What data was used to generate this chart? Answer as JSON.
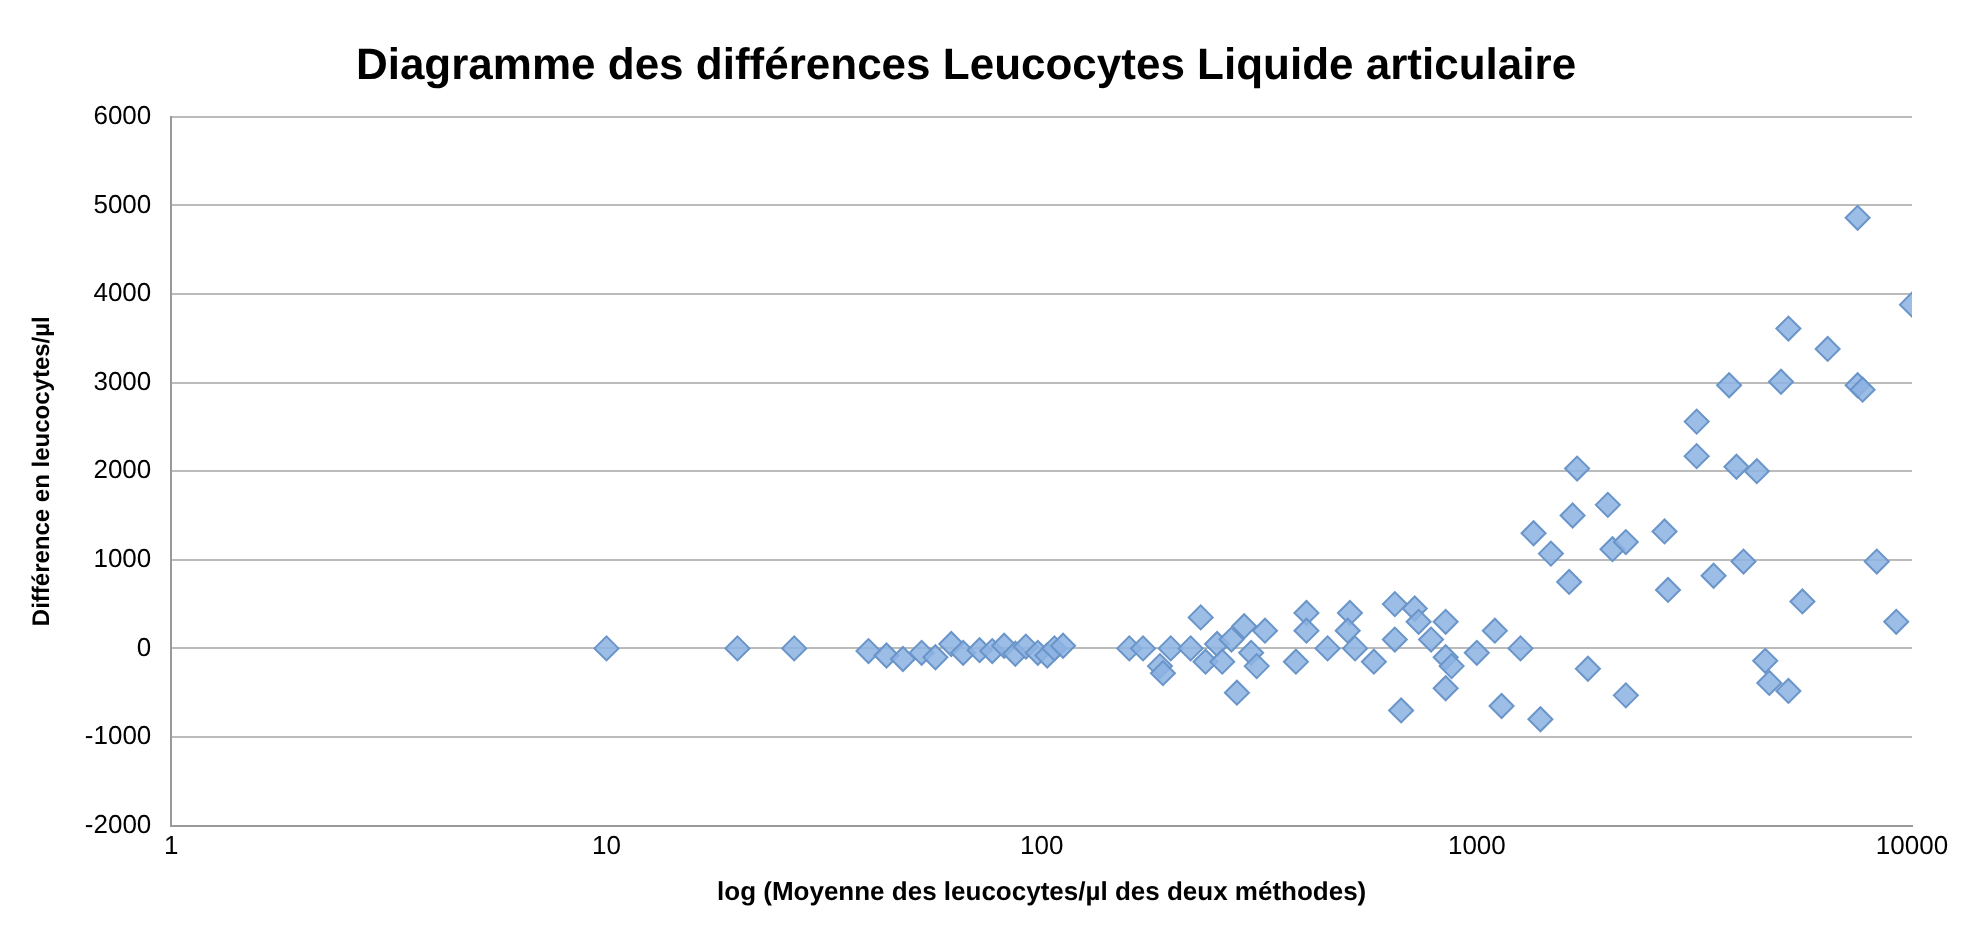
{
  "chart_data": {
    "type": "scatter",
    "title": "Diagramme des différences Leucocytes Liquide articulaire",
    "xlabel": "log (Moyenne des leucocytes/µl des deux méthodes)",
    "ylabel": "Différence en leucocytes/µl",
    "log": "x",
    "grid": "y",
    "marker": "diamond",
    "xlim": [
      1,
      10000
    ],
    "xticks": [
      1,
      10,
      100,
      1000,
      10000
    ],
    "ylim": [
      -2000,
      6000
    ],
    "yticks": [
      -2000,
      -1000,
      0,
      1000,
      2000,
      3000,
      4000,
      5000,
      6000
    ],
    "series": [
      {
        "color": "#8db3e2",
        "x": [
          10,
          20,
          27,
          40,
          44,
          48,
          53,
          57,
          62,
          66,
          72,
          77,
          82,
          87,
          92,
          98,
          103,
          107,
          112,
          159,
          171,
          187,
          190,
          198,
          220,
          232,
          238,
          253,
          260,
          273,
          281,
          292,
          303,
          312,
          326,
          384,
          406,
          406,
          454,
          511,
          505,
          525,
          580,
          648,
          648,
          670,
          720,
          735,
          785,
          848,
          848,
          875,
          848,
          1000,
          1100,
          1140,
          1260,
          1350,
          1400,
          1480,
          1630,
          1660,
          1700,
          1800,
          2000,
          2050,
          2200,
          2200,
          2700,
          2750,
          3200,
          3200,
          3500,
          3800,
          3950,
          4100,
          4400,
          4600,
          4700,
          5000,
          5200,
          5200,
          5600,
          6400,
          7500,
          7700,
          8300,
          9200,
          10000,
          7500
        ],
        "values": [
          0,
          0,
          0,
          -30,
          -80,
          -120,
          -50,
          -100,
          50,
          -50,
          -20,
          -30,
          30,
          -60,
          20,
          -50,
          -80,
          0,
          30,
          0,
          0,
          -200,
          -280,
          0,
          0,
          350,
          -150,
          50,
          -150,
          100,
          -500,
          250,
          -50,
          -200,
          200,
          -150,
          400,
          200,
          0,
          400,
          200,
          0,
          -150,
          500,
          100,
          -700,
          450,
          300,
          100,
          300,
          -100,
          -200,
          -450,
          -50,
          200,
          -650,
          0,
          1300,
          -800,
          1070,
          750,
          1500,
          2030,
          -230,
          1620,
          1120,
          1200,
          -530,
          1320,
          660,
          2560,
          2170,
          820,
          2970,
          2050,
          980,
          2000,
          -140,
          -390,
          3010,
          -480,
          3610,
          530,
          3380,
          2970,
          2920,
          980,
          300,
          3880,
          4860
        ]
      }
    ]
  }
}
